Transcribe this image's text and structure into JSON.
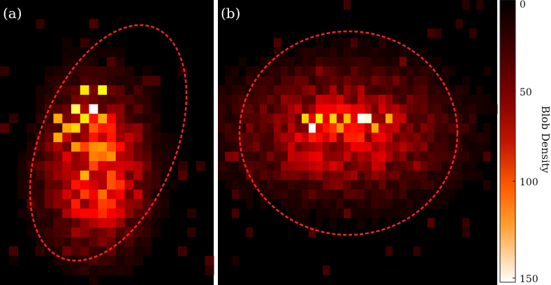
{
  "chart_data": [
    {
      "type": "heatmap",
      "panel_label": "(a)",
      "grid": [
        30,
        24
      ],
      "peak_value": 150,
      "bright_cells": [
        {
          "col": 10,
          "row": 11,
          "value": 150
        },
        {
          "col": 8,
          "row": 11,
          "value": 130
        },
        {
          "col": 9,
          "row": 12,
          "value": 115
        },
        {
          "col": 9,
          "row": 9,
          "value": 115
        },
        {
          "col": 11,
          "row": 9,
          "value": 120
        },
        {
          "col": 7,
          "row": 13,
          "value": 100
        },
        {
          "col": 8,
          "row": 13,
          "value": 110
        },
        {
          "col": 6,
          "row": 12,
          "value": 100
        },
        {
          "col": 6,
          "row": 14,
          "value": 100
        },
        {
          "col": 11,
          "row": 12,
          "value": 100
        }
      ],
      "outline": {
        "style": "dashed",
        "color": "#ff2020"
      }
    },
    {
      "type": "heatmap",
      "panel_label": "(b)",
      "grid": [
        30,
        40
      ],
      "peak_value": 150,
      "bright_cells": [
        {
          "col": 13,
          "row": 13,
          "value": 150
        },
        {
          "col": 20,
          "row": 12,
          "value": 150
        },
        {
          "col": 21,
          "row": 12,
          "value": 145
        },
        {
          "col": 12,
          "row": 12,
          "value": 110
        },
        {
          "col": 14,
          "row": 12,
          "value": 115
        },
        {
          "col": 16,
          "row": 12,
          "value": 110
        },
        {
          "col": 18,
          "row": 12,
          "value": 105
        },
        {
          "col": 22,
          "row": 13,
          "value": 100
        },
        {
          "col": 24,
          "row": 12,
          "value": 100
        },
        {
          "col": 17,
          "row": 13,
          "value": 95
        }
      ],
      "outline": {
        "style": "dashed",
        "color": "#ff2020"
      }
    }
  ],
  "colorbar": {
    "title": "Blob Density",
    "range": [
      0,
      150
    ],
    "ticks": [
      "0",
      "50",
      "100",
      "150"
    ],
    "direction": "top-to-bottom",
    "colormap": "hot"
  }
}
